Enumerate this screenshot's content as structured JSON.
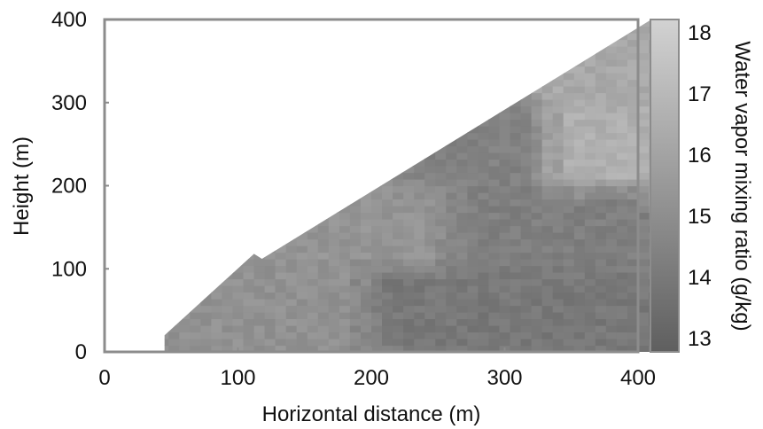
{
  "chart_data": {
    "type": "heatmap",
    "xlabel": "Horizontal distance (m)",
    "ylabel": "Height (m)",
    "colorbar_label": "Water vapor mixing ratio (g/kg)",
    "xlim": [
      0,
      400
    ],
    "ylim": [
      0,
      400
    ],
    "x_ticks": [
      0,
      100,
      200,
      300,
      400
    ],
    "y_ticks": [
      0,
      100,
      200,
      300,
      400
    ],
    "color_range": [
      13,
      18
    ],
    "colorbar_ticks": [
      13,
      14,
      15,
      16,
      17,
      18
    ],
    "colormap": "grayscale (dark = low, light = high)",
    "grid": false,
    "data_region": {
      "boundary": [
        [
          45,
          0
        ],
        [
          45,
          20
        ],
        [
          112,
          118
        ],
        [
          118,
          112
        ],
        [
          410,
          400
        ],
        [
          410,
          0
        ]
      ]
    },
    "mean_field": [
      {
        "height_band": [
          0,
          100
        ],
        "distance_band": [
          45,
          200
        ],
        "value": 15.2
      },
      {
        "height_band": [
          0,
          100
        ],
        "distance_band": [
          200,
          410
        ],
        "value": 14.1
      },
      {
        "height_band": [
          100,
          200
        ],
        "distance_band": [
          130,
          260
        ],
        "value": 15.3
      },
      {
        "height_band": [
          100,
          200
        ],
        "distance_band": [
          260,
          410
        ],
        "value": 14.4
      },
      {
        "height_band": [
          200,
          300
        ],
        "distance_band": [
          230,
          330
        ],
        "value": 14.5
      },
      {
        "height_band": [
          200,
          300
        ],
        "distance_band": [
          330,
          410
        ],
        "value": 16.5
      },
      {
        "height_band": [
          300,
          400
        ],
        "distance_band": [
          340,
          410
        ],
        "value": 16.2
      }
    ],
    "colors": {
      "low": "#5f5f5f",
      "high": "#d2d2d2",
      "frame": "#8c8c8c"
    }
  }
}
